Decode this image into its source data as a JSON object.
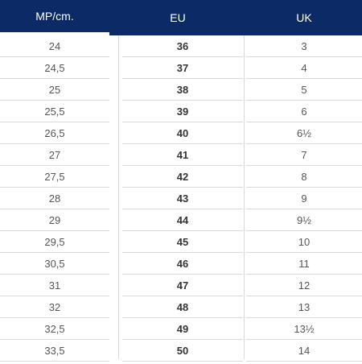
{
  "table": {
    "headers": {
      "mp": "MP/cm.",
      "eu": "EU",
      "uk": "UK"
    },
    "mp": [
      "24",
      "24,5",
      "25",
      "25,5",
      "26,5",
      "27",
      "27,5",
      "28",
      "29",
      "29,5",
      "30,5",
      "31",
      "32",
      "32,5",
      "33,5"
    ],
    "eu": [
      "36",
      "37",
      "38",
      "39",
      "40",
      "41",
      "42",
      "43",
      "44",
      "45",
      "46",
      "47",
      "48",
      "49",
      "50"
    ],
    "uk": [
      "3",
      "4",
      "5",
      "6",
      "6½",
      "7",
      "8",
      "9",
      "9½",
      "10",
      "11",
      "12",
      "13",
      "13½",
      "14"
    ]
  }
}
